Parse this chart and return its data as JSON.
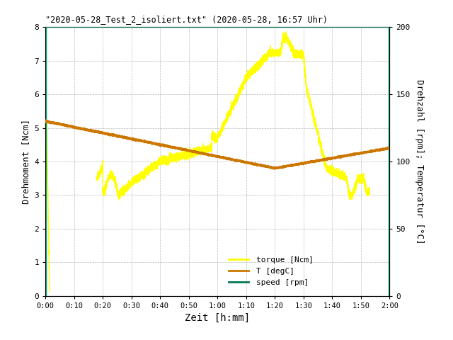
{
  "title": "\"2020-05-28_Test_2_isoliert.txt\" (2020-05-28, 16:57 Uhr)",
  "xlabel": "Zeit [h:mm]",
  "ylabel_left": "Drehmoment [Ncm]",
  "ylabel_right": "Drehzahl [rpm]; Temperatur [°C]",
  "ylim_left": [
    0,
    8
  ],
  "ylim_right": [
    0,
    200
  ],
  "xlim": [
    0,
    120
  ],
  "yticks_left": [
    0,
    1,
    2,
    3,
    4,
    5,
    6,
    7,
    8
  ],
  "yticks_right": [
    0,
    50,
    100,
    150,
    200
  ],
  "xtick_minutes": [
    0,
    10,
    20,
    30,
    40,
    50,
    60,
    70,
    80,
    90,
    100,
    110,
    120
  ],
  "xtick_labels": [
    "0:00",
    "0:10",
    "0:20",
    "0:30",
    "0:40",
    "0:50",
    "1:00",
    "1:10",
    "1:20",
    "1:30",
    "1:40",
    "1:50",
    "2:00"
  ],
  "color_torque": "#ffff00",
  "color_temp": "#cc7700",
  "color_speed": "#007755",
  "color_border": "#00aa77",
  "background_color": "#ffffff",
  "grid_color": "#aaaaaa",
  "legend_labels": [
    "torque [Ncm]",
    "T [degC]",
    "speed [rpm]"
  ],
  "speed_rpm": 200,
  "font_family": "monospace"
}
